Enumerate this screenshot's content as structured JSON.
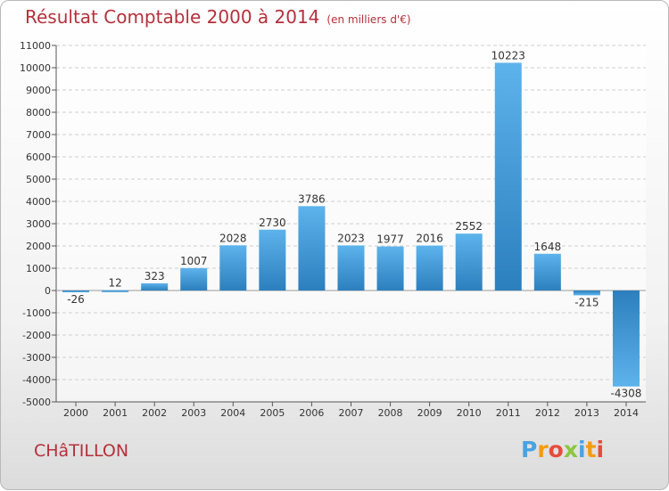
{
  "title": "Résultat Comptable 2000 à 2014",
  "subtitle": "(en milliers d'€)",
  "city": "CHâTILLON",
  "logo": "Proxiti",
  "colors": {
    "title": "#b5303b",
    "bar_light": "#5db3ec",
    "bar_dark": "#2c7fbd"
  },
  "chart_data": {
    "type": "bar",
    "title": "Résultat Comptable 2000 à 2014",
    "subtitle": "(en milliers d'€)",
    "categories": [
      "2000",
      "2001",
      "2002",
      "2003",
      "2004",
      "2005",
      "2006",
      "2007",
      "2008",
      "2009",
      "2010",
      "2011",
      "2012",
      "2013",
      "2014"
    ],
    "values": [
      -26,
      12,
      323,
      1007,
      2028,
      2730,
      3786,
      2023,
      1977,
      2016,
      2552,
      10223,
      1648,
      -215,
      -4308
    ],
    "ylim": [
      -5000,
      11000
    ],
    "yticks": [
      -5000,
      -4000,
      -3000,
      -2000,
      -1000,
      0,
      1000,
      2000,
      3000,
      4000,
      5000,
      6000,
      7000,
      8000,
      9000,
      10000,
      11000
    ],
    "grid": true,
    "data_labels": true
  }
}
